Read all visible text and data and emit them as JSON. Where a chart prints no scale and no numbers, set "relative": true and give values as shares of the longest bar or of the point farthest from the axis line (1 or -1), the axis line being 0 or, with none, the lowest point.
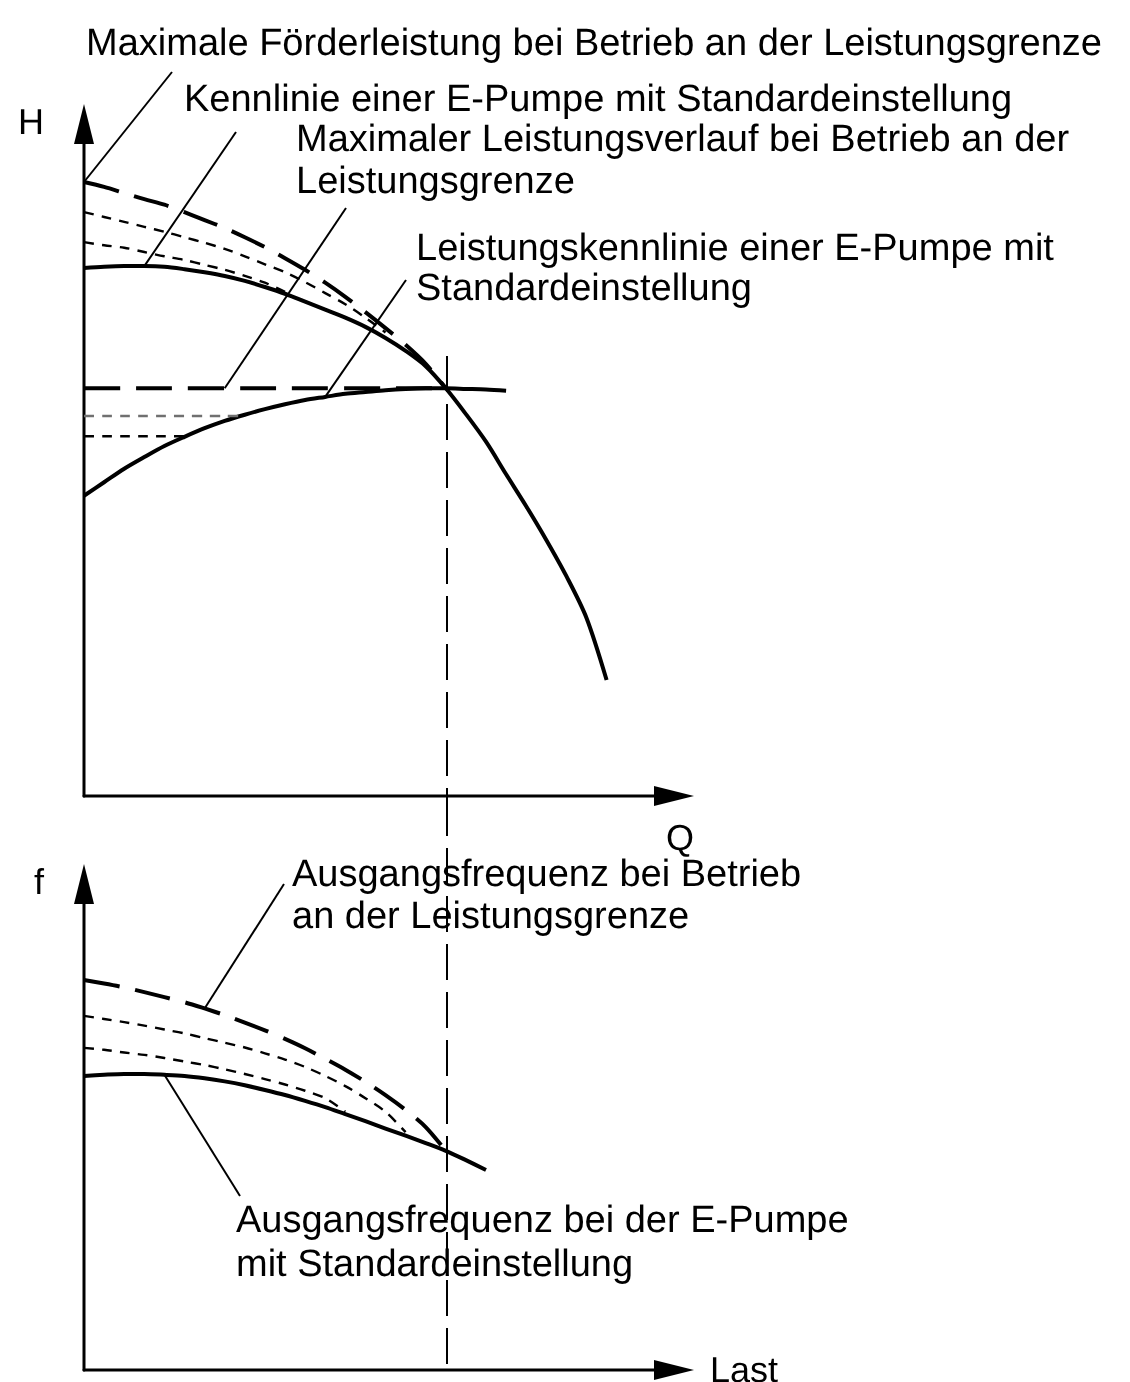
{
  "chart_data": [
    {
      "type": "line",
      "xlabel": "Q",
      "ylabel": "H",
      "relative": true,
      "marker": "none",
      "categories": [
        null,
        null,
        null,
        null,
        null,
        null,
        null,
        null,
        null,
        null,
        null,
        null,
        null,
        null,
        null,
        null,
        null,
        null,
        null,
        null,
        null,
        null,
        null,
        null,
        null,
        null,
        null,
        null,
        null,
        null
      ],
      "series": [
        {
          "name": "Maximale Förderleistung bei Betrieb an der Leistungsgrenze",
          "color": "#000000",
          "line_style": "dashed",
          "values": [
            1,
            0.992,
            0.982,
            0.972,
            0.963,
            0.951,
            0.938,
            0.925,
            0.91,
            0.894,
            0.876,
            0.857,
            0.836,
            0.813,
            0.788,
            0.762,
            0.735,
            0.704,
            0.664,
            null,
            null,
            null,
            null,
            null,
            null,
            null,
            null,
            null,
            null,
            null
          ]
        },
        {
          "color": "#000000",
          "line_style": "dashed",
          "values": [
            0.951,
            0.943,
            0.935,
            0.927,
            0.919,
            0.91,
            0.901,
            0.891,
            0.879,
            0.866,
            0.853,
            0.837,
            0.819,
            0.801,
            0.779,
            0.755,
            null,
            null,
            null,
            null,
            null,
            null,
            null,
            null,
            null,
            null,
            null,
            null,
            null,
            null
          ]
        },
        {
          "color": "#000000",
          "line_style": "dashed",
          "values": [
            0.902,
            0.897,
            0.893,
            0.886,
            0.879,
            0.873,
            0.865,
            0.857,
            0.847,
            0.836,
            0.821,
            null,
            null,
            null,
            null,
            null,
            null,
            null,
            null,
            null,
            null,
            null,
            null,
            null,
            null,
            null,
            null,
            null,
            null,
            null
          ]
        },
        {
          "name": "Kennlinie einer E-Pumpe mit Standardeinstellung",
          "color": "#000000",
          "line_style": "solid",
          "values": [
            0.86,
            0.862,
            0.863,
            0.863,
            0.862,
            0.858,
            0.853,
            0.847,
            0.839,
            0.829,
            0.818,
            0.805,
            0.792,
            0.779,
            0.764,
            0.746,
            0.725,
            0.7,
            0.664,
            0.622,
            0.577,
            0.524,
            0.472,
            0.417,
            0.358,
            0.29,
            0.189,
            null,
            null,
            null
          ]
        },
        {
          "name": "Maximaler Leistungsverlauf bei Betrieb an der Leistungsgrenze",
          "color": "#000000",
          "line_style": "dashed",
          "values": [
            0.664,
            0.664,
            0.664,
            0.664,
            0.664,
            0.664,
            0.664,
            0.664,
            0.664,
            0.664,
            0.664,
            0.664,
            0.664,
            0.664,
            0.664,
            0.664,
            0.664,
            0.664,
            0.664,
            null,
            null,
            null,
            null,
            null,
            null,
            null,
            null,
            null,
            null,
            null
          ]
        },
        {
          "name": "Leistungskennlinie einer E-Pumpe mit Standardeinstellung",
          "color": "#000000",
          "line_style": "solid",
          "values": [
            0.489,
            0.511,
            0.533,
            0.552,
            0.57,
            0.585,
            0.599,
            0.611,
            0.621,
            0.63,
            0.638,
            0.645,
            0.65,
            0.655,
            0.658,
            0.661,
            0.663,
            0.664,
            0.664,
            0.663,
            0.662,
            0.66,
            null,
            null,
            null,
            null,
            null,
            null,
            null,
            null
          ]
        },
        {
          "color": "#707070",
          "line_style": "dashed",
          "values": [
            0.619,
            0.619,
            0.619,
            0.619,
            0.619,
            0.619,
            0.619,
            0.619,
            0.619,
            null,
            null,
            null,
            null,
            null,
            null,
            null,
            null,
            null,
            null,
            null,
            null,
            null,
            null,
            null,
            null,
            null,
            null,
            null,
            null,
            null
          ]
        },
        {
          "color": "#000000",
          "line_style": "dashed",
          "values": [
            0.586,
            0.586,
            0.586,
            0.586,
            0.586,
            0.586,
            null,
            null,
            null,
            null,
            null,
            null,
            null,
            null,
            null,
            null,
            null,
            null,
            null,
            null,
            null,
            null,
            null,
            null,
            null,
            null,
            null,
            null,
            null,
            null
          ]
        }
      ]
    },
    {
      "type": "line",
      "xlabel": "Last",
      "ylabel": "f",
      "relative": true,
      "marker": "none",
      "categories": [
        null,
        null,
        null,
        null,
        null,
        null,
        null,
        null,
        null,
        null,
        null,
        null,
        null,
        null,
        null,
        null,
        null,
        null,
        null,
        null,
        null,
        null,
        null,
        null,
        null,
        null,
        null,
        null,
        null,
        null
      ],
      "series": [
        {
          "name": "Ausgangsfrequenz bei Betrieb an der Leistungsgrenze",
          "color": "#000000",
          "line_style": "dashed",
          "values": [
            1,
            0.991,
            0.981,
            0.969,
            0.956,
            0.943,
            0.927,
            0.91,
            0.891,
            0.871,
            0.849,
            0.825,
            0.798,
            0.77,
            0.739,
            0.705,
            0.667,
            0.623,
            0.562,
            null,
            null,
            null,
            null,
            null,
            null,
            null,
            null,
            null,
            null,
            null
          ]
        },
        {
          "color": "#000000",
          "line_style": "dashed",
          "values": [
            0.908,
            0.9,
            0.892,
            0.883,
            0.873,
            0.863,
            0.851,
            0.839,
            0.827,
            0.812,
            0.796,
            0.777,
            0.754,
            0.728,
            0.697,
            0.662,
            0.61,
            null,
            null,
            null,
            null,
            null,
            null,
            null,
            null,
            null,
            null,
            null,
            null,
            null
          ]
        },
        {
          "color": "#000000",
          "line_style": "dashed",
          "values": [
            0.826,
            0.821,
            0.814,
            0.808,
            0.8,
            0.791,
            0.782,
            0.771,
            0.759,
            0.746,
            0.732,
            0.716,
            0.697,
            0.662,
            null,
            null,
            null,
            null,
            null,
            null,
            null,
            null,
            null,
            null,
            null,
            null,
            null,
            null,
            null,
            null
          ]
        },
        {
          "name": "Ausgangsfrequenz bei der E-Pumpe mit Standardeinstellung",
          "color": "#000000",
          "line_style": "solid",
          "values": [
            0.754,
            0.757,
            0.759,
            0.759,
            0.757,
            0.754,
            0.748,
            0.74,
            0.73,
            0.718,
            0.705,
            0.69,
            0.674,
            0.656,
            0.638,
            0.619,
            0.601,
            0.582,
            0.562,
            0.538,
            0.513,
            null,
            null,
            null,
            null,
            null,
            null,
            null,
            null,
            null
          ]
        }
      ]
    }
  ]
}
